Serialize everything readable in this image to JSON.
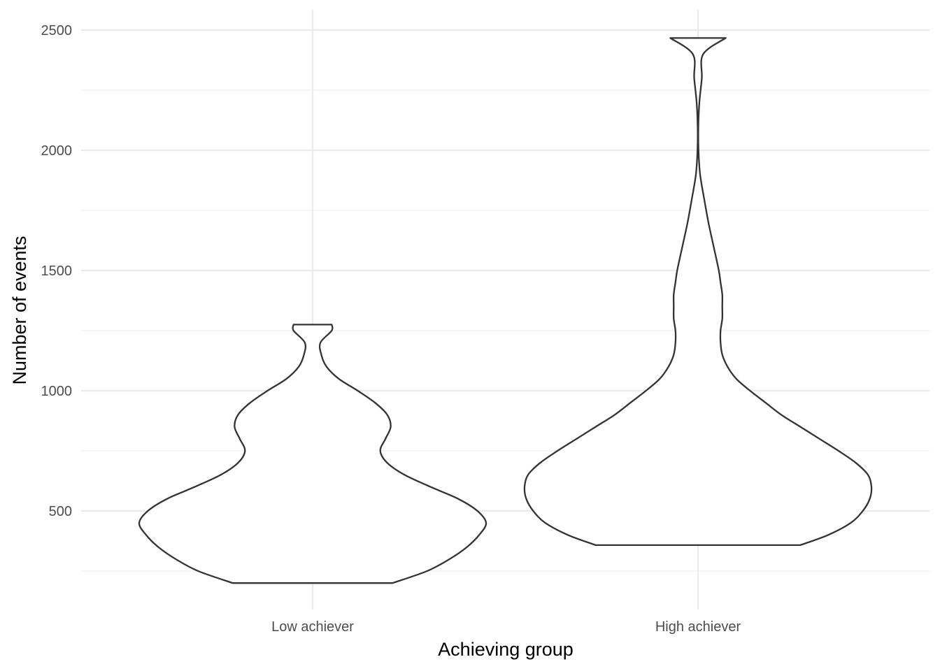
{
  "chart_data": {
    "type": "violin",
    "title": "",
    "xlabel": "Achieving group",
    "ylabel": "Number of events",
    "categories": [
      "Low achiever",
      "High achiever"
    ],
    "ylim": [
      130,
      2580
    ],
    "y_ticks": [
      500,
      1000,
      1500,
      2000,
      2500
    ],
    "y_tick_labels": [
      "500",
      "1000",
      "1500",
      "2000",
      "2500"
    ],
    "y_minor_ticks": [
      250,
      750,
      1250,
      1750,
      2250
    ],
    "grid": true,
    "legend": "none",
    "outline_color": "#333333",
    "fill_color": "#ffffff",
    "series": [
      {
        "category": "Low achiever",
        "min": 200,
        "max": 1275,
        "profile": [
          [
            200,
            0.46
          ],
          [
            250,
            0.66
          ],
          [
            300,
            0.79
          ],
          [
            350,
            0.89
          ],
          [
            400,
            0.96
          ],
          [
            450,
            1.0
          ],
          [
            500,
            0.95
          ],
          [
            550,
            0.84
          ],
          [
            600,
            0.68
          ],
          [
            650,
            0.53
          ],
          [
            700,
            0.43
          ],
          [
            750,
            0.39
          ],
          [
            800,
            0.42
          ],
          [
            850,
            0.45
          ],
          [
            900,
            0.43
          ],
          [
            950,
            0.36
          ],
          [
            1000,
            0.26
          ],
          [
            1050,
            0.15
          ],
          [
            1100,
            0.08
          ],
          [
            1150,
            0.05
          ],
          [
            1200,
            0.045
          ],
          [
            1250,
            0.11
          ],
          [
            1275,
            0.11
          ]
        ]
      },
      {
        "category": "High achiever",
        "min": 358,
        "max": 2467,
        "profile": [
          [
            358,
            0.59
          ],
          [
            400,
            0.75
          ],
          [
            450,
            0.88
          ],
          [
            500,
            0.95
          ],
          [
            550,
            0.99
          ],
          [
            600,
            1.0
          ],
          [
            650,
            0.98
          ],
          [
            700,
            0.91
          ],
          [
            750,
            0.81
          ],
          [
            800,
            0.7
          ],
          [
            850,
            0.59
          ],
          [
            900,
            0.48
          ],
          [
            950,
            0.39
          ],
          [
            1000,
            0.3
          ],
          [
            1050,
            0.22
          ],
          [
            1100,
            0.17
          ],
          [
            1150,
            0.14
          ],
          [
            1200,
            0.13
          ],
          [
            1250,
            0.13
          ],
          [
            1300,
            0.14
          ],
          [
            1350,
            0.14
          ],
          [
            1400,
            0.14
          ],
          [
            1450,
            0.13
          ],
          [
            1500,
            0.12
          ],
          [
            1600,
            0.09
          ],
          [
            1700,
            0.06
          ],
          [
            1800,
            0.035
          ],
          [
            1900,
            0.012
          ],
          [
            2000,
            0.003
          ],
          [
            2100,
            0.002
          ],
          [
            2200,
            0.008
          ],
          [
            2300,
            0.022
          ],
          [
            2400,
            0.03
          ],
          [
            2467,
            0.16
          ]
        ]
      }
    ]
  }
}
